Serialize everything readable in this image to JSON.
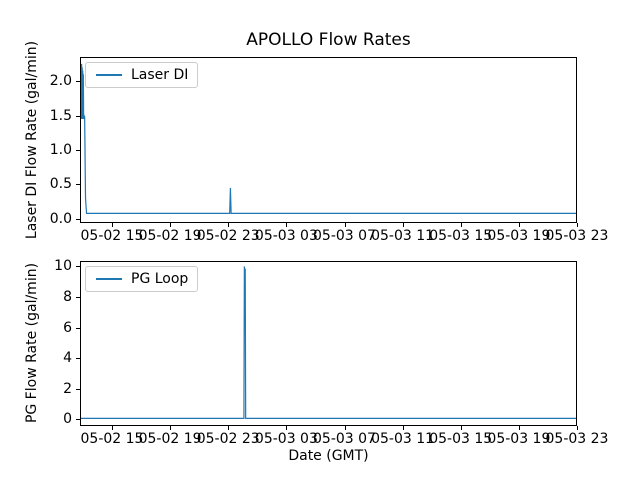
{
  "figure": {
    "title": "APOLLO Flow Rates",
    "xlabel": "Date (GMT)"
  },
  "colors": {
    "line": "#1f77b4",
    "spine": "#000000",
    "text": "#000000",
    "legend_border": "#cccccc",
    "background": "#ffffff"
  },
  "chart_data": [
    {
      "type": "line",
      "title": "APOLLO Flow Rates",
      "xlabel": "",
      "ylabel": "Laser DI Flow Rate (gal/min)",
      "legend": "Laser DI",
      "legend_location": "upper left",
      "grid": false,
      "x_unit": "hours since 05-02 00:00 GMT",
      "xlim": [
        12.8,
        47.0
      ],
      "ylim": [
        -0.06,
        2.35
      ],
      "xticks": [
        15,
        19,
        23,
        27,
        31,
        35,
        39,
        43,
        47
      ],
      "xtick_labels": [
        "05-02 15",
        "05-02 19",
        "05-02 23",
        "05-03 03",
        "05-03 07",
        "05-03 11",
        "05-03 15",
        "05-03 19",
        "05-03 23"
      ],
      "yticks": [
        0.0,
        0.5,
        1.0,
        1.5,
        2.0
      ],
      "ytick_labels": [
        "0.0",
        "0.5",
        "1.0",
        "1.5",
        "2.0"
      ],
      "series": [
        {
          "name": "Laser DI",
          "x": [
            12.85,
            12.87,
            12.89,
            12.91,
            12.93,
            12.95,
            12.97,
            12.99,
            13.01,
            13.03,
            13.05,
            13.08,
            13.12,
            13.18,
            13.25,
            22.9,
            23.1,
            23.15,
            23.2,
            23.4,
            47.0
          ],
          "y": [
            1.5,
            2.2,
            1.45,
            2.25,
            1.5,
            2.2,
            1.45,
            2.15,
            1.6,
            2.1,
            1.45,
            1.5,
            1.48,
            0.3,
            0.08,
            0.08,
            0.08,
            0.45,
            0.08,
            0.08,
            0.08
          ]
        }
      ]
    },
    {
      "type": "line",
      "title": "",
      "xlabel": "Date (GMT)",
      "ylabel": "PG Flow Rate (gal/min)",
      "legend": "PG Loop",
      "legend_location": "upper left",
      "grid": false,
      "x_unit": "hours since 05-02 00:00 GMT",
      "xlim": [
        12.8,
        47.0
      ],
      "ylim": [
        -0.45,
        10.35
      ],
      "xticks": [
        15,
        19,
        23,
        27,
        31,
        35,
        39,
        43,
        47
      ],
      "xtick_labels": [
        "05-02 15",
        "05-02 19",
        "05-02 23",
        "05-03 03",
        "05-03 07",
        "05-03 11",
        "05-03 15",
        "05-03 19",
        "05-03 23"
      ],
      "yticks": [
        0,
        2,
        4,
        6,
        8,
        10
      ],
      "ytick_labels": [
        "0",
        "2",
        "4",
        "6",
        "8",
        "10"
      ],
      "series": [
        {
          "name": "PG Loop",
          "x": [
            12.85,
            23.9,
            24.08,
            24.11,
            24.14,
            24.17,
            24.2,
            24.35,
            47.0
          ],
          "y": [
            0.05,
            0.05,
            0.05,
            10.0,
            9.5,
            9.85,
            0.05,
            0.05,
            0.05
          ]
        }
      ]
    }
  ]
}
